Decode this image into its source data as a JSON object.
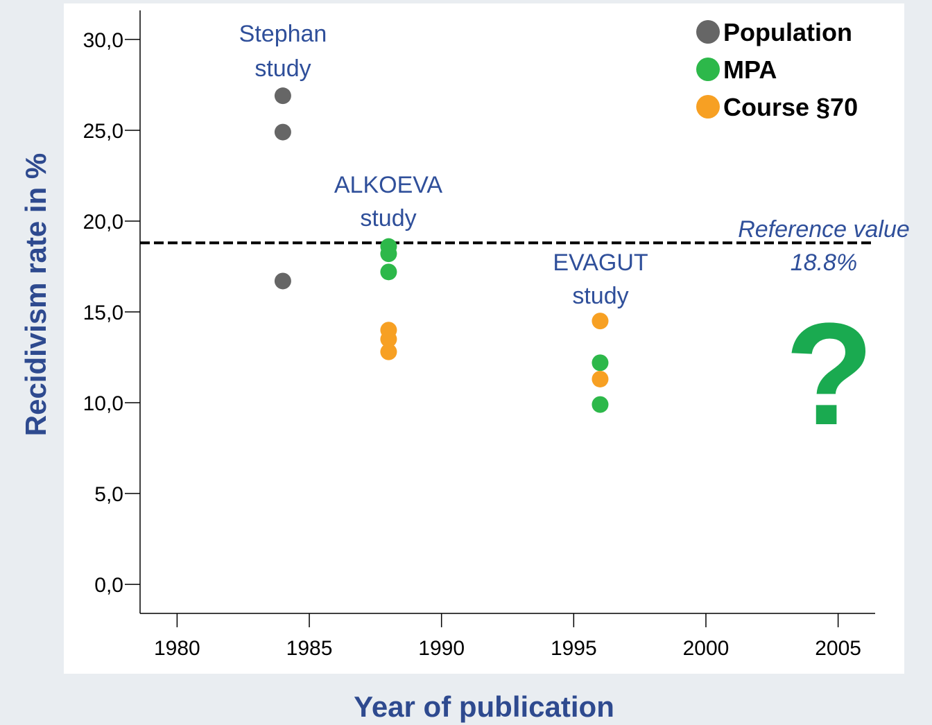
{
  "chart_data": {
    "type": "scatter",
    "xlabel": "Year of publication",
    "ylabel": "Recidivism rate in %",
    "xlim": [
      1978.6,
      2006.4
    ],
    "ylim": [
      -1.6,
      31.6
    ],
    "xticks": [
      1980,
      1985,
      1990,
      1995,
      2000,
      2005
    ],
    "yticks": [
      {
        "value": 0,
        "label": "0,0"
      },
      {
        "value": 5,
        "label": "5,0"
      },
      {
        "value": 10,
        "label": "10,0"
      },
      {
        "value": 15,
        "label": "15,0"
      },
      {
        "value": 20,
        "label": "20,0"
      },
      {
        "value": 25,
        "label": "25,0"
      },
      {
        "value": 30,
        "label": "30,0"
      }
    ],
    "legend": "upper right",
    "series": [
      {
        "name": "Population",
        "color": "#666666",
        "x": [
          1984,
          1984,
          1984
        ],
        "values": [
          26.9,
          24.9,
          16.7
        ]
      },
      {
        "name": "MPA",
        "color": "#2db84a",
        "x": [
          1988,
          1988,
          1988,
          1996,
          1996
        ],
        "values": [
          18.6,
          18.2,
          17.2,
          12.2,
          9.9
        ]
      },
      {
        "name": "Course §70",
        "color": "#f7a023",
        "x": [
          1988,
          1988,
          1988,
          1996,
          1996
        ],
        "values": [
          14.0,
          13.5,
          12.8,
          14.5,
          11.3
        ]
      }
    ],
    "reference_line": {
      "value": 18.8,
      "label": [
        "Reference value",
        "18.8%"
      ]
    },
    "annotations": [
      {
        "text": [
          "Stephan",
          "study"
        ]
      },
      {
        "text": [
          "ALKOEVA",
          "study"
        ]
      },
      {
        "text": [
          "EVAGUT",
          "study"
        ]
      },
      {
        "text": "?"
      }
    ]
  }
}
